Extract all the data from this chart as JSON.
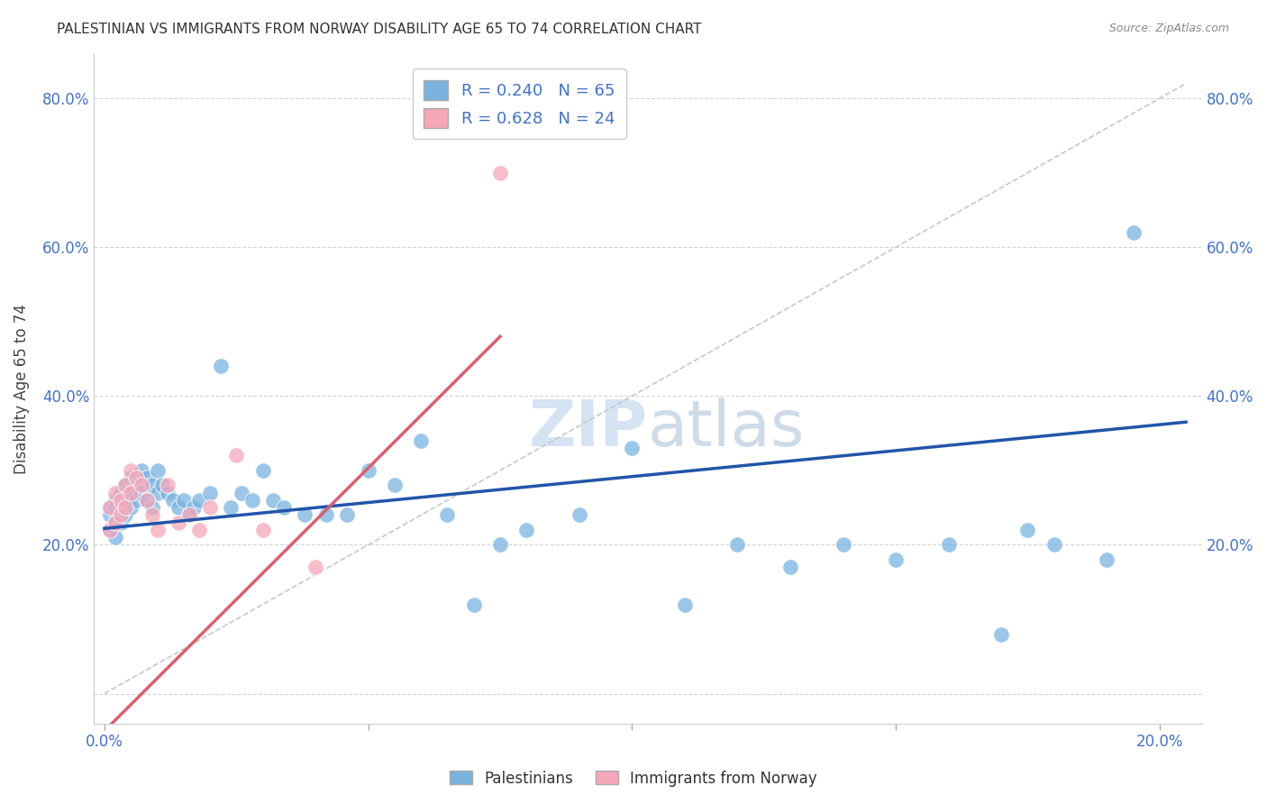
{
  "title": "PALESTINIAN VS IMMIGRANTS FROM NORWAY DISABILITY AGE 65 TO 74 CORRELATION CHART",
  "source": "Source: ZipAtlas.com",
  "ylabel": "Disability Age 65 to 74",
  "xmin": -0.002,
  "xmax": 0.208,
  "ymin": -0.04,
  "ymax": 0.86,
  "xtick_positions": [
    0.0,
    0.05,
    0.1,
    0.15,
    0.2
  ],
  "xtick_labels": [
    "0.0%",
    "",
    "",
    "",
    "20.0%"
  ],
  "ytick_positions": [
    0.0,
    0.2,
    0.4,
    0.6,
    0.8
  ],
  "ytick_labels": [
    "",
    "20.0%",
    "40.0%",
    "60.0%",
    "80.0%"
  ],
  "color_blue": "#7ab3e0",
  "color_pink": "#f4a7b9",
  "color_blue_text": "#4472C4",
  "color_trendline_blue": "#2255a8",
  "color_trendline_pink": "#d95f70",
  "color_diagonal": "#c8c8c8",
  "watermark_color": "#c5d8ee",
  "blue_scatter_x": [
    0.001,
    0.001,
    0.001,
    0.002,
    0.002,
    0.002,
    0.002,
    0.003,
    0.003,
    0.003,
    0.004,
    0.004,
    0.004,
    0.005,
    0.005,
    0.005,
    0.006,
    0.006,
    0.007,
    0.007,
    0.008,
    0.008,
    0.009,
    0.009,
    0.01,
    0.01,
    0.011,
    0.012,
    0.013,
    0.014,
    0.015,
    0.016,
    0.017,
    0.018,
    0.02,
    0.022,
    0.024,
    0.026,
    0.028,
    0.03,
    0.032,
    0.034,
    0.038,
    0.042,
    0.046,
    0.05,
    0.055,
    0.06,
    0.065,
    0.07,
    0.075,
    0.08,
    0.09,
    0.1,
    0.11,
    0.12,
    0.13,
    0.14,
    0.15,
    0.16,
    0.17,
    0.175,
    0.18,
    0.19,
    0.195
  ],
  "blue_scatter_y": [
    0.25,
    0.24,
    0.22,
    0.26,
    0.25,
    0.23,
    0.21,
    0.27,
    0.25,
    0.23,
    0.28,
    0.26,
    0.24,
    0.29,
    0.27,
    0.25,
    0.28,
    0.26,
    0.3,
    0.27,
    0.29,
    0.26,
    0.28,
    0.25,
    0.3,
    0.27,
    0.28,
    0.27,
    0.26,
    0.25,
    0.26,
    0.24,
    0.25,
    0.26,
    0.27,
    0.44,
    0.25,
    0.27,
    0.26,
    0.3,
    0.26,
    0.25,
    0.24,
    0.24,
    0.24,
    0.3,
    0.28,
    0.34,
    0.24,
    0.12,
    0.2,
    0.22,
    0.24,
    0.33,
    0.12,
    0.2,
    0.17,
    0.2,
    0.18,
    0.2,
    0.08,
    0.22,
    0.2,
    0.18,
    0.62
  ],
  "pink_scatter_x": [
    0.001,
    0.001,
    0.002,
    0.002,
    0.003,
    0.003,
    0.004,
    0.004,
    0.005,
    0.005,
    0.006,
    0.007,
    0.008,
    0.009,
    0.01,
    0.012,
    0.014,
    0.016,
    0.018,
    0.02,
    0.025,
    0.03,
    0.04,
    0.075
  ],
  "pink_scatter_y": [
    0.25,
    0.22,
    0.27,
    0.23,
    0.26,
    0.24,
    0.28,
    0.25,
    0.3,
    0.27,
    0.29,
    0.28,
    0.26,
    0.24,
    0.22,
    0.28,
    0.23,
    0.24,
    0.22,
    0.25,
    0.32,
    0.22,
    0.17,
    0.7
  ],
  "trendline_blue_x0": 0.0,
  "trendline_blue_y0": 0.222,
  "trendline_blue_x1": 0.205,
  "trendline_blue_y1": 0.365,
  "trendline_pink_x0": 0.0,
  "trendline_pink_y0": -0.05,
  "trendline_pink_x1": 0.075,
  "trendline_pink_y1": 0.48
}
